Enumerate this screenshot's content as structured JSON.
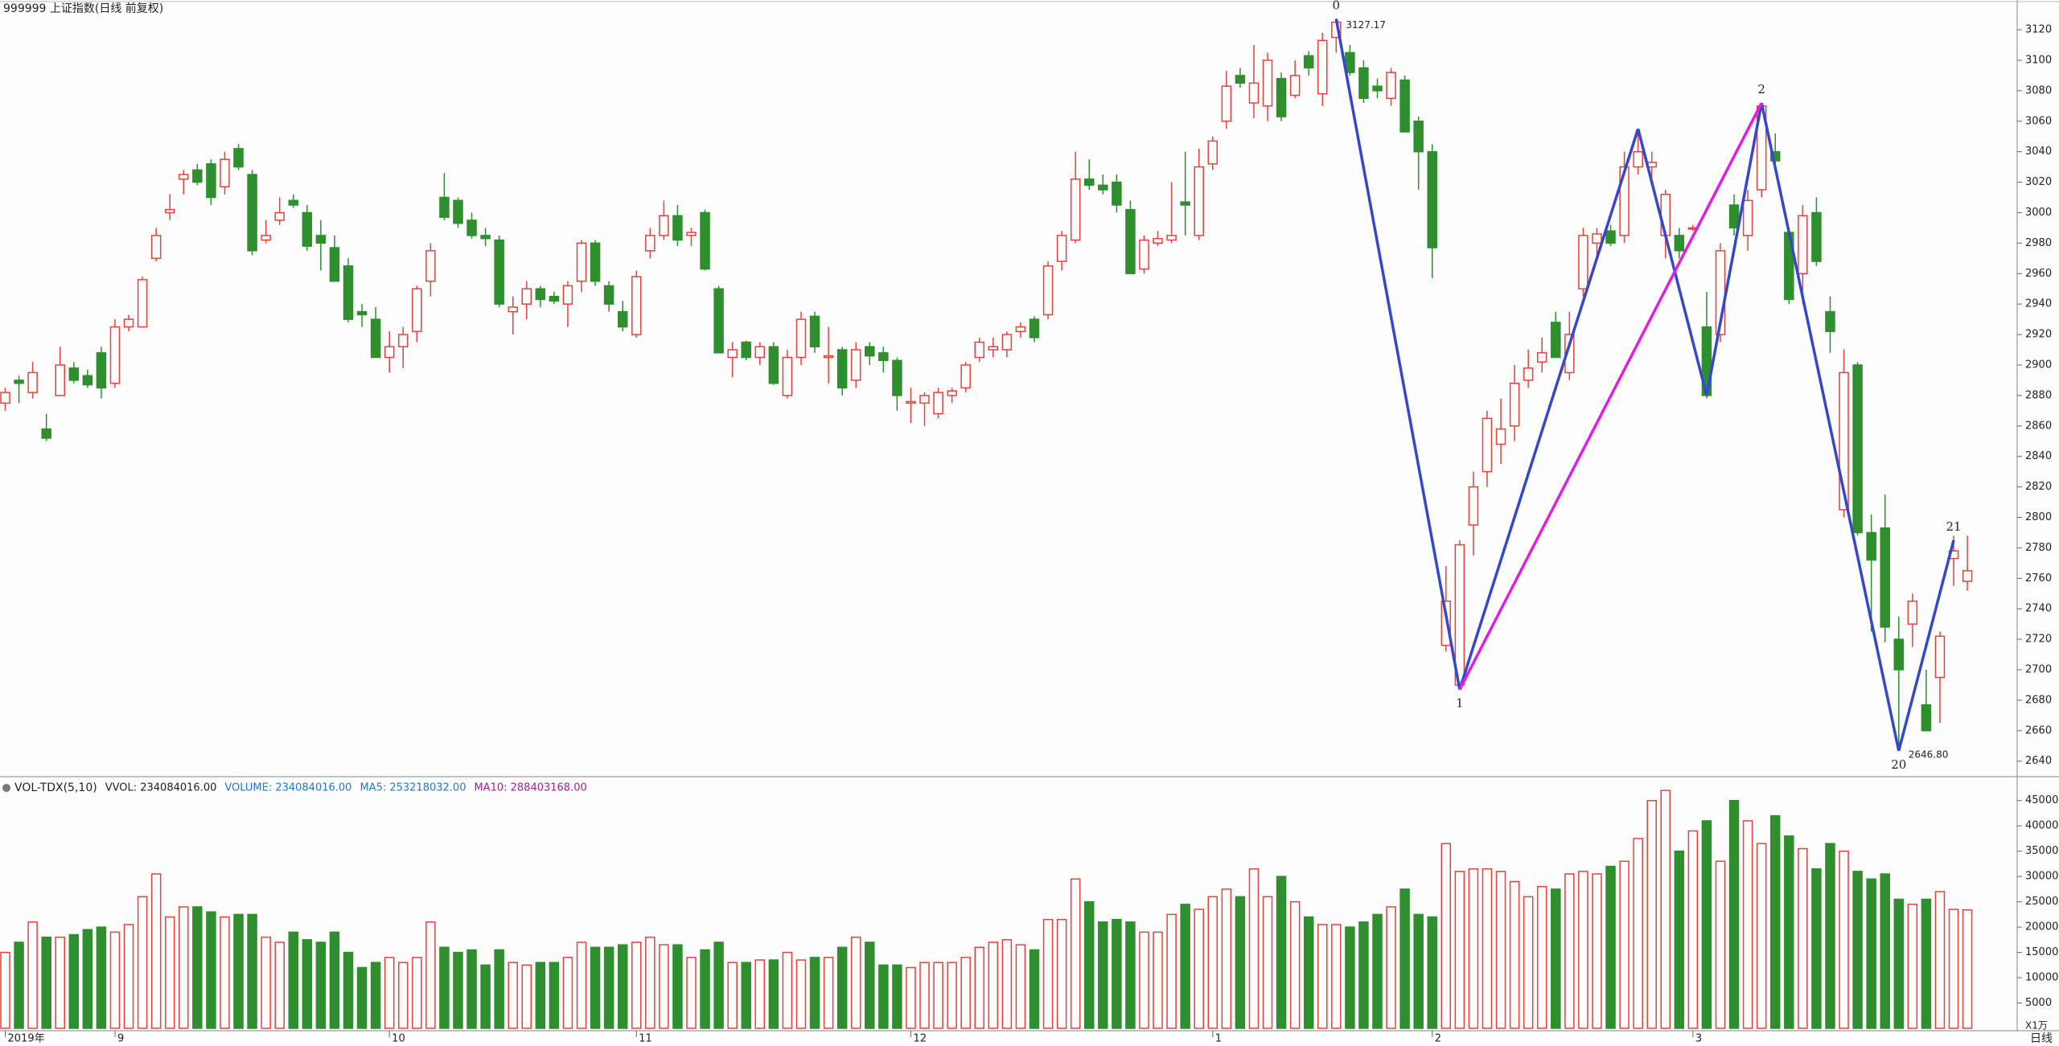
{
  "header": {
    "title": "999999 上证指数(日线 前复权)"
  },
  "chart_data": [
    {
      "type": "candlestick",
      "up_color": "#e8413a",
      "down_color": "#2f8f2f",
      "ylim": [
        2633,
        3129
      ],
      "yticks": [
        2640,
        2660,
        2680,
        2700,
        2720,
        2740,
        2760,
        2780,
        2800,
        2820,
        2840,
        2860,
        2880,
        2900,
        2920,
        2940,
        2960,
        2980,
        3000,
        3020,
        3040,
        3060,
        3080,
        3100,
        3120
      ],
      "categories": [
        "2019年",
        null,
        null,
        null,
        null,
        null,
        null,
        null,
        "9",
        null,
        null,
        null,
        null,
        null,
        null,
        null,
        null,
        null,
        null,
        null,
        null,
        null,
        null,
        null,
        null,
        null,
        null,
        null,
        "10",
        null,
        null,
        null,
        null,
        null,
        null,
        null,
        null,
        null,
        null,
        null,
        null,
        null,
        null,
        null,
        null,
        null,
        "11",
        null,
        null,
        null,
        null,
        null,
        null,
        null,
        null,
        null,
        null,
        null,
        null,
        null,
        null,
        null,
        null,
        null,
        null,
        null,
        "12",
        null,
        null,
        null,
        null,
        null,
        null,
        null,
        null,
        null,
        null,
        null,
        null,
        null,
        null,
        null,
        null,
        null,
        null,
        null,
        null,
        null,
        "1",
        null,
        null,
        null,
        null,
        null,
        null,
        null,
        null,
        null,
        null,
        null,
        null,
        null,
        null,
        null,
        "2",
        null,
        null,
        null,
        null,
        null,
        null,
        null,
        null,
        null,
        null,
        null,
        null,
        null,
        null,
        null,
        null,
        null,
        null,
        "3",
        null,
        null,
        null,
        null,
        null,
        null,
        null,
        null,
        null,
        null,
        null,
        null,
        null,
        null,
        null,
        null,
        null,
        null
      ],
      "ohlc": [
        [
          2875,
          2885,
          2870,
          2882
        ],
        [
          2890,
          2893,
          2875,
          2888
        ],
        [
          2882,
          2902,
          2878,
          2895
        ],
        [
          2858,
          2868,
          2850,
          2852
        ],
        [
          2880,
          2912,
          2880,
          2900
        ],
        [
          2898,
          2902,
          2888,
          2890
        ],
        [
          2893,
          2897,
          2885,
          2887
        ],
        [
          2908,
          2912,
          2878,
          2885
        ],
        [
          2888,
          2930,
          2885,
          2925
        ],
        [
          2925,
          2933,
          2922,
          2930
        ],
        [
          2925,
          2958,
          2925,
          2956
        ],
        [
          2970,
          2990,
          2968,
          2985
        ],
        [
          3000,
          3012,
          2995,
          3002
        ],
        [
          3022,
          3028,
          3012,
          3025
        ],
        [
          3028,
          3032,
          3018,
          3020
        ],
        [
          3032,
          3035,
          3005,
          3010
        ],
        [
          3017,
          3040,
          3012,
          3035
        ],
        [
          3042,
          3045,
          3028,
          3030
        ],
        [
          3025,
          3028,
          2972,
          2975
        ],
        [
          2982,
          2995,
          2980,
          2985
        ],
        [
          2995,
          3010,
          2992,
          3000
        ],
        [
          3008,
          3012,
          3003,
          3005
        ],
        [
          3000,
          3005,
          2975,
          2978
        ],
        [
          2985,
          2995,
          2962,
          2980
        ],
        [
          2977,
          2985,
          2955,
          2955
        ],
        [
          2965,
          2970,
          2928,
          2930
        ],
        [
          2935,
          2940,
          2925,
          2933
        ],
        [
          2930,
          2938,
          2905,
          2905
        ],
        [
          2905,
          2922,
          2895,
          2912
        ],
        [
          2912,
          2925,
          2898,
          2920
        ],
        [
          2922,
          2952,
          2915,
          2950
        ],
        [
          2955,
          2980,
          2945,
          2975
        ],
        [
          3010,
          3026,
          2995,
          2997
        ],
        [
          3008,
          3010,
          2990,
          2993
        ],
        [
          2995,
          3000,
          2983,
          2985
        ],
        [
          2985,
          2990,
          2978,
          2983
        ],
        [
          2982,
          2985,
          2938,
          2940
        ],
        [
          2935,
          2945,
          2920,
          2938
        ],
        [
          2940,
          2955,
          2930,
          2950
        ],
        [
          2950,
          2952,
          2938,
          2943
        ],
        [
          2945,
          2948,
          2940,
          2942
        ],
        [
          2940,
          2955,
          2925,
          2952
        ],
        [
          2955,
          2982,
          2948,
          2980
        ],
        [
          2980,
          2982,
          2952,
          2955
        ],
        [
          2952,
          2955,
          2935,
          2940
        ],
        [
          2935,
          2942,
          2922,
          2925
        ],
        [
          2920,
          2962,
          2918,
          2958
        ],
        [
          2975,
          2990,
          2970,
          2985
        ],
        [
          2985,
          3008,
          2982,
          2998
        ],
        [
          2998,
          3005,
          2978,
          2982
        ],
        [
          2985,
          2990,
          2978,
          2987
        ],
        [
          3000,
          3002,
          2962,
          2963
        ],
        [
          2950,
          2952,
          2908,
          2908
        ],
        [
          2905,
          2915,
          2892,
          2910
        ],
        [
          2915,
          2916,
          2903,
          2905
        ],
        [
          2905,
          2915,
          2900,
          2912
        ],
        [
          2912,
          2915,
          2887,
          2888
        ],
        [
          2880,
          2910,
          2878,
          2905
        ],
        [
          2905,
          2935,
          2900,
          2930
        ],
        [
          2932,
          2935,
          2908,
          2912
        ],
        [
          2905,
          2925,
          2888,
          2906
        ],
        [
          2910,
          2912,
          2880,
          2885
        ],
        [
          2890,
          2915,
          2885,
          2910
        ],
        [
          2912,
          2915,
          2900,
          2906
        ],
        [
          2908,
          2912,
          2895,
          2903
        ],
        [
          2903,
          2905,
          2870,
          2880
        ],
        [
          2875,
          2885,
          2862,
          2876
        ],
        [
          2875,
          2882,
          2860,
          2880
        ],
        [
          2868,
          2885,
          2865,
          2882
        ],
        [
          2880,
          2885,
          2875,
          2883
        ],
        [
          2885,
          2902,
          2882,
          2900
        ],
        [
          2905,
          2918,
          2902,
          2915
        ],
        [
          2910,
          2918,
          2905,
          2912
        ],
        [
          2910,
          2922,
          2905,
          2920
        ],
        [
          2922,
          2928,
          2918,
          2925
        ],
        [
          2930,
          2932,
          2915,
          2918
        ],
        [
          2933,
          2968,
          2930,
          2965
        ],
        [
          2968,
          2988,
          2962,
          2985
        ],
        [
          2982,
          3040,
          2980,
          3022
        ],
        [
          3022,
          3035,
          3015,
          3018
        ],
        [
          3018,
          3025,
          3012,
          3015
        ],
        [
          3020,
          3025,
          3000,
          3005
        ],
        [
          3002,
          3008,
          2960,
          2960
        ],
        [
          2963,
          2985,
          2960,
          2982
        ],
        [
          2980,
          2988,
          2978,
          2983
        ],
        [
          2982,
          3020,
          2980,
          2985
        ],
        [
          3007,
          3040,
          2985,
          3005
        ],
        [
          2985,
          3042,
          2982,
          3030
        ],
        [
          3032,
          3050,
          3028,
          3047
        ],
        [
          3060,
          3093,
          3055,
          3083
        ],
        [
          3090,
          3095,
          3082,
          3085
        ],
        [
          3072,
          3110,
          3062,
          3085
        ],
        [
          3070,
          3105,
          3060,
          3100
        ],
        [
          3088,
          3092,
          3060,
          3063
        ],
        [
          3077,
          3100,
          3075,
          3090
        ],
        [
          3103,
          3106,
          3090,
          3095
        ],
        [
          3078,
          3118,
          3070,
          3113
        ],
        [
          3115,
          3127.17,
          3105,
          3125
        ],
        [
          3105,
          3110,
          3090,
          3092
        ],
        [
          3095,
          3100,
          3072,
          3075
        ],
        [
          3083,
          3088,
          3075,
          3080
        ],
        [
          3075,
          3095,
          3070,
          3092
        ],
        [
          3087,
          3090,
          3053,
          3053
        ],
        [
          3060,
          3063,
          3015,
          3040
        ],
        [
          3040,
          3045,
          2957,
          2977
        ],
        [
          2716,
          2768,
          2712,
          2745
        ],
        [
          2690,
          2785,
          2687,
          2782
        ],
        [
          2795,
          2830,
          2775,
          2820
        ],
        [
          2830,
          2870,
          2820,
          2865
        ],
        [
          2848,
          2878,
          2835,
          2858
        ],
        [
          2860,
          2900,
          2850,
          2888
        ],
        [
          2890,
          2910,
          2885,
          2898
        ],
        [
          2902,
          2918,
          2895,
          2908
        ],
        [
          2928,
          2935,
          2905,
          2905
        ],
        [
          2895,
          2935,
          2890,
          2920
        ],
        [
          2950,
          2990,
          2945,
          2985
        ],
        [
          2980,
          2990,
          2970,
          2986
        ],
        [
          2988,
          2992,
          2978,
          2980
        ],
        [
          2985,
          3040,
          2980,
          3030
        ],
        [
          3030,
          3055,
          3025,
          3040
        ],
        [
          3030,
          3040,
          3020,
          3033
        ],
        [
          2985,
          3015,
          2970,
          3012
        ],
        [
          2985,
          2990,
          2970,
          2975
        ],
        [
          2990,
          2992,
          2988,
          2990
        ],
        [
          2925,
          2948,
          2878,
          2880
        ],
        [
          2920,
          2980,
          2915,
          2975
        ],
        [
          3005,
          3012,
          2985,
          2990
        ],
        [
          2985,
          3015,
          2975,
          3008
        ],
        [
          3015,
          3072,
          3010,
          3070
        ],
        [
          3040,
          3052,
          3030,
          3034
        ],
        [
          2987,
          2990,
          2940,
          2943
        ],
        [
          2960,
          3005,
          2940,
          2998
        ],
        [
          3000,
          3010,
          2965,
          2968
        ],
        [
          2935,
          2945,
          2908,
          2922
        ],
        [
          2805,
          2910,
          2800,
          2895
        ],
        [
          2900,
          2902,
          2788,
          2790
        ],
        [
          2790,
          2802,
          2725,
          2772
        ],
        [
          2793,
          2815,
          2718,
          2728
        ],
        [
          2720,
          2735,
          2646.8,
          2700
        ],
        [
          2730,
          2750,
          2715,
          2745
        ],
        [
          2677,
          2700,
          2660,
          2660
        ],
        [
          2695,
          2725,
          2665,
          2722
        ],
        [
          2773,
          2788,
          2755,
          2778
        ],
        [
          2758,
          2788,
          2752,
          2765
        ]
      ],
      "wave": {
        "color": "#3548c8",
        "accent_color": "#e01ee0",
        "accent_segment": [
          1,
          4
        ],
        "points": [
          {
            "label": "0",
            "index": 97,
            "price": 3127.17,
            "value_label": "3127.17"
          },
          {
            "label": "1",
            "index": 106,
            "price": 2687
          },
          {
            "index": 119,
            "price": 3055
          },
          {
            "index": 124,
            "price": 2880
          },
          {
            "label": "2",
            "index": 128,
            "price": 3072
          },
          {
            "label": "20",
            "index": 138,
            "price": 2646.8,
            "value_label": "2646.80"
          },
          {
            "label": "21",
            "index": 142,
            "price": 2785
          }
        ]
      }
    },
    {
      "type": "bar",
      "title": "VOL-TDX(5,10)",
      "ylim": [
        0,
        47500
      ],
      "yticks": [
        5000,
        10000,
        15000,
        20000,
        25000,
        30000,
        35000,
        40000,
        45000
      ],
      "unit_label": "X1万",
      "legend": [
        {
          "text": "VVOL: 234084016.00",
          "color": "#222222"
        },
        {
          "text": "VOLUME: 234084016.00",
          "color": "#1f78c8"
        },
        {
          "text": "MA5: 253218032.00",
          "color": "#1f78c8"
        },
        {
          "text": "MA10: 288403168.00",
          "color": "#a0209a"
        }
      ],
      "values": [
        15000,
        17000,
        21000,
        18000,
        18000,
        18500,
        19500,
        20000,
        19000,
        20500,
        26000,
        30500,
        22000,
        24000,
        24000,
        23000,
        22000,
        22500,
        22500,
        18000,
        17000,
        19000,
        17500,
        17000,
        19000,
        15000,
        12000,
        13000,
        14000,
        13000,
        14000,
        21000,
        16000,
        15000,
        15500,
        12500,
        15500,
        13000,
        12500,
        13000,
        13000,
        14000,
        17000,
        16000,
        16000,
        16500,
        17000,
        18000,
        16500,
        16500,
        14000,
        15500,
        17000,
        13000,
        13000,
        13500,
        13500,
        15000,
        13500,
        14000,
        14000,
        16000,
        18000,
        17000,
        12500,
        12500,
        12000,
        13000,
        13000,
        13000,
        14000,
        16000,
        17000,
        17500,
        16500,
        15500,
        21500,
        21500,
        29500,
        25000,
        21000,
        21500,
        21000,
        19000,
        19000,
        22500,
        24500,
        23500,
        26000,
        27500,
        26000,
        31500,
        26000,
        30000,
        25000,
        22000,
        20500,
        20500,
        20000,
        21000,
        22500,
        24000,
        27500,
        22500,
        22000,
        36500,
        31000,
        31500,
        31500,
        31000,
        29000,
        26000,
        28000,
        27500,
        30500,
        31000,
        30500,
        32000,
        33000,
        37500,
        45000,
        47000,
        35000,
        39000,
        41000,
        33000,
        45000,
        41000,
        36500,
        42000,
        38000,
        35500,
        31500,
        36500,
        35000,
        31000,
        29500,
        30500,
        25500,
        24500,
        25500,
        27000,
        23500,
        23400
      ]
    }
  ],
  "footer": {
    "period": "日线"
  }
}
